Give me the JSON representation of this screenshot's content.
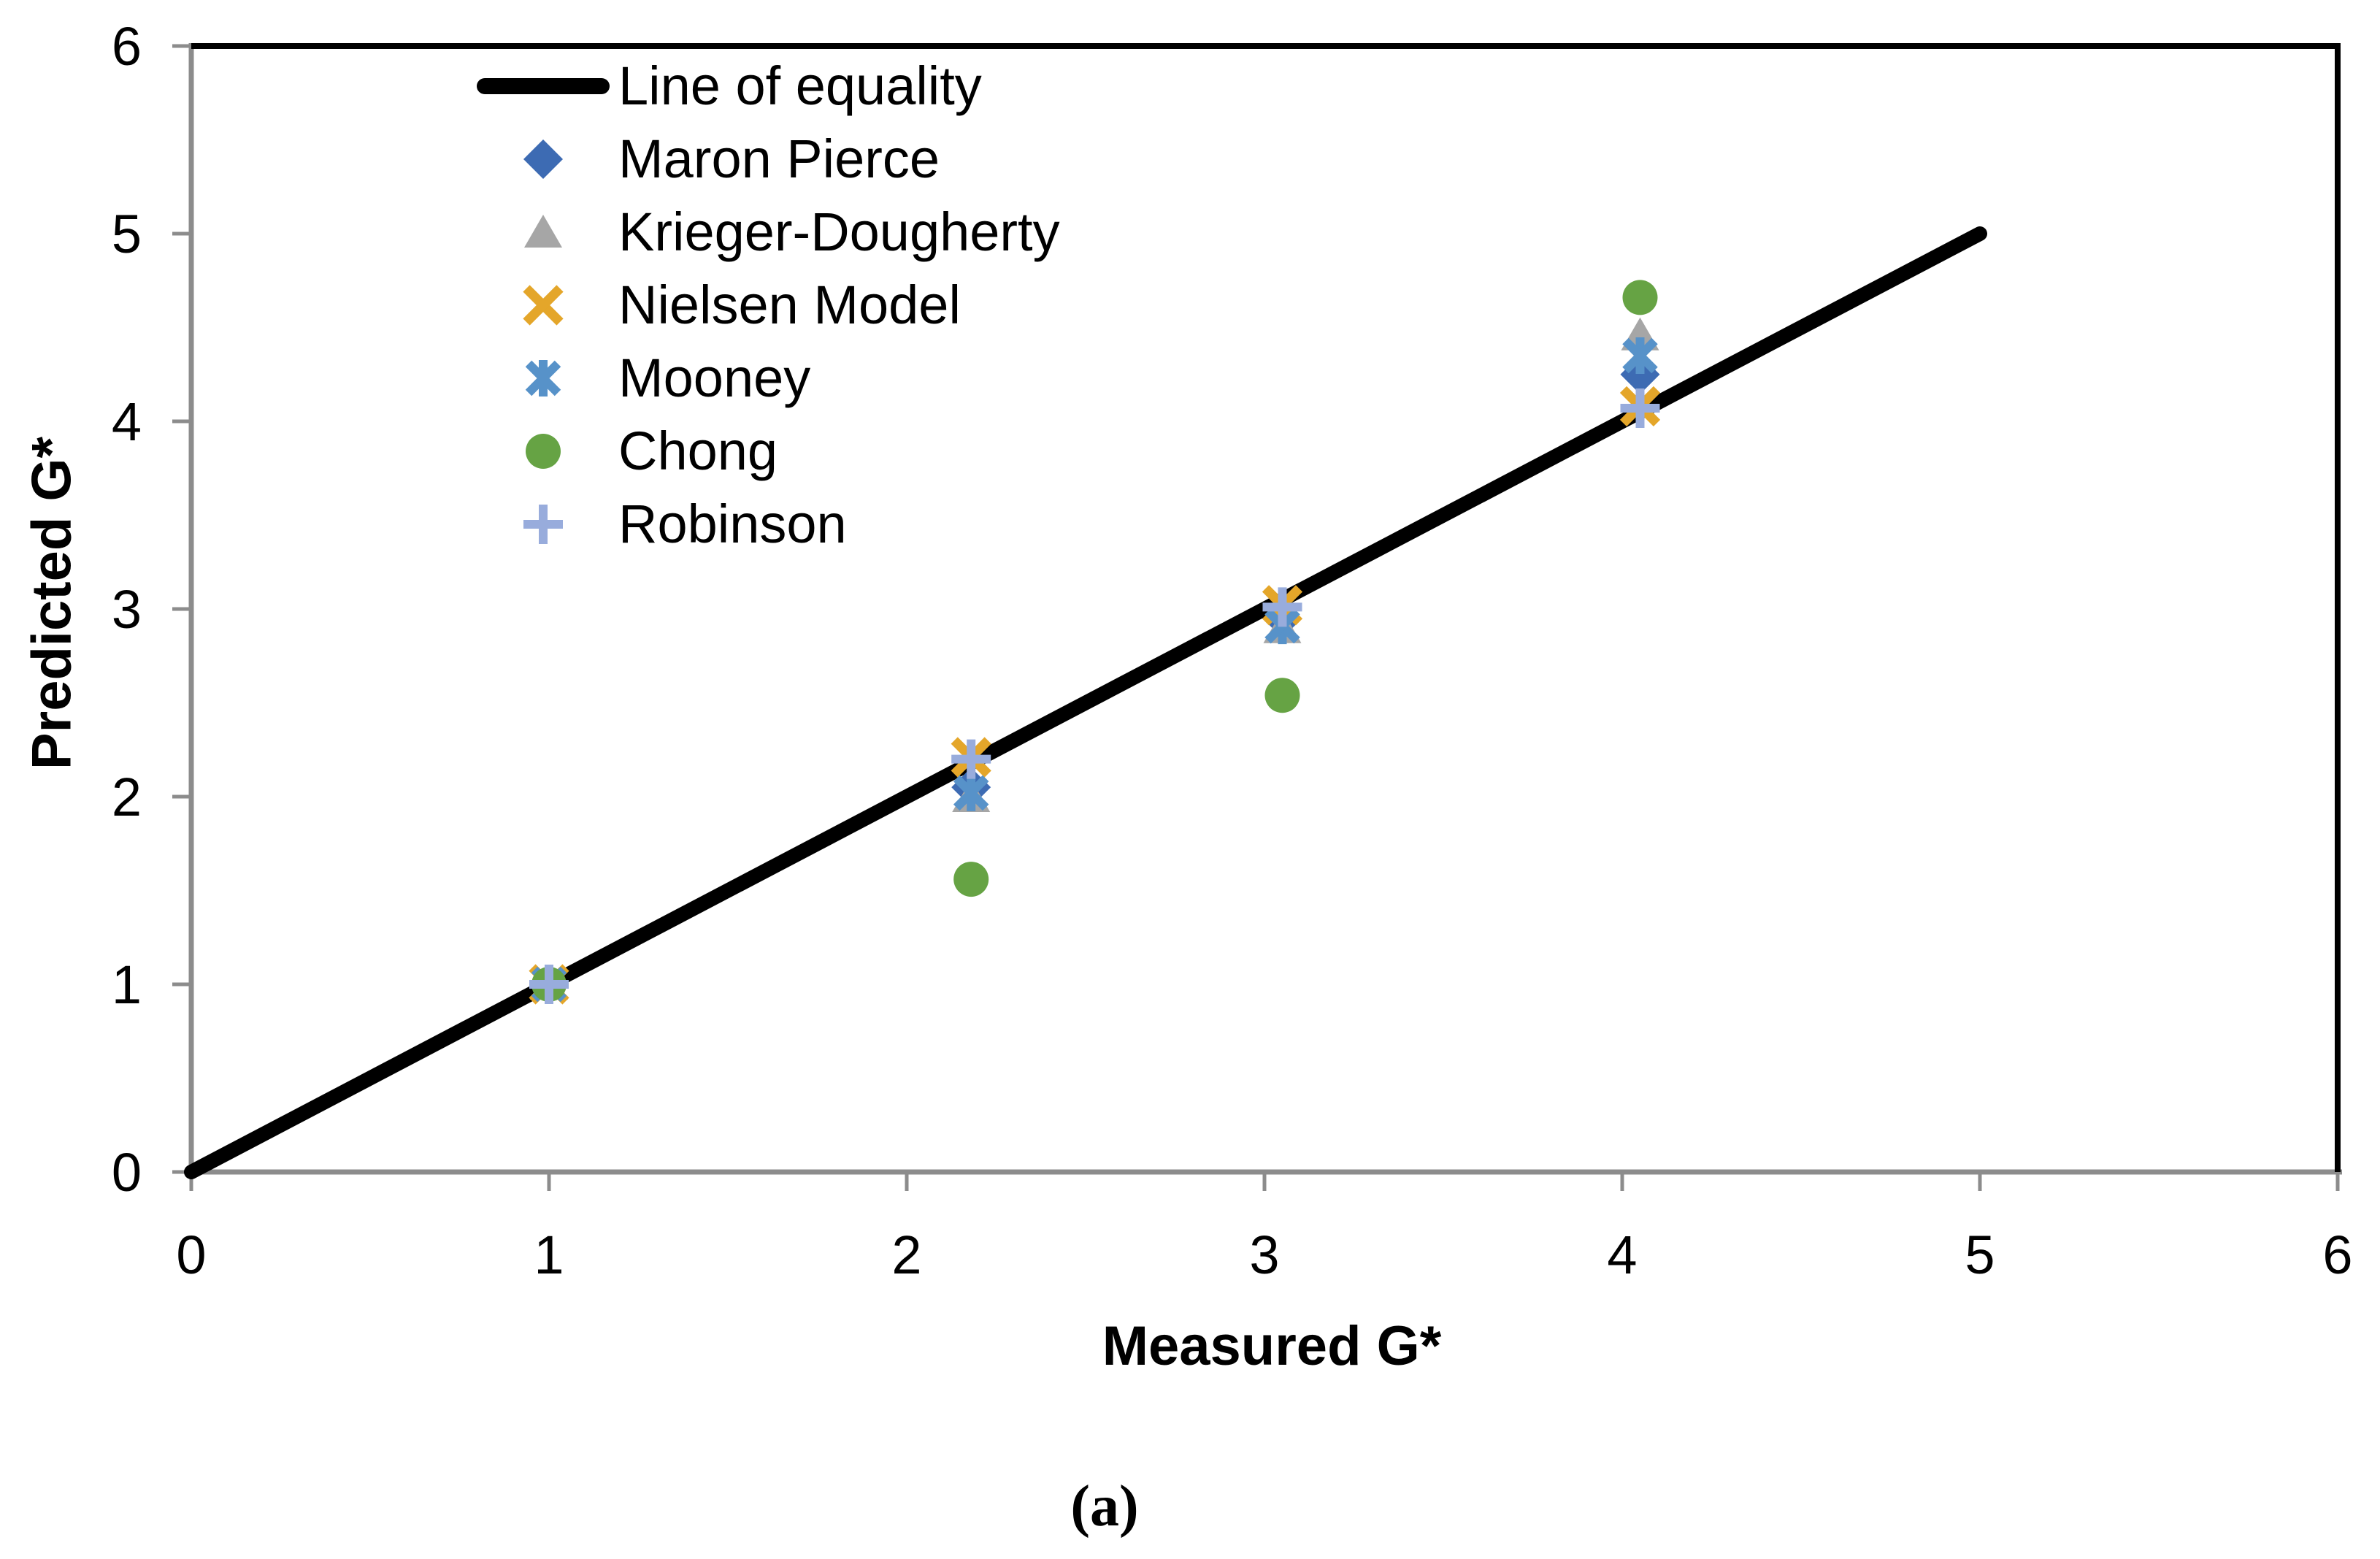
{
  "figure": {
    "caption": "(a)",
    "background": "#FFFFFF"
  },
  "chart_data": {
    "type": "scatter",
    "xlabel": "Measured G*",
    "ylabel": "Predicted G*",
    "xlim": [
      0,
      6
    ],
    "ylim": [
      0,
      6
    ],
    "x_ticks": [
      "0",
      "1",
      "2",
      "3",
      "4",
      "5",
      "6"
    ],
    "y_ticks": [
      "0",
      "1",
      "2",
      "3",
      "4",
      "5",
      "6"
    ],
    "grid": false,
    "legend_position": "inside-top-left",
    "axis_color": "#8C8C8C",
    "frame_color": "#000000",
    "text_color": "#000000",
    "equality_line": {
      "label": "Line of equality",
      "x": [
        0,
        5
      ],
      "y": [
        0,
        5
      ],
      "color": "#000000"
    },
    "x": [
      1.0,
      2.18,
      3.05,
      4.05
    ],
    "series": [
      {
        "name": "Maron Pierce",
        "marker": "diamond",
        "color": "#3D6BB3",
        "y": [
          1.0,
          2.05,
          2.95,
          4.25
        ]
      },
      {
        "name": "Krieger-Dougherty",
        "marker": "triangle",
        "color": "#A6A6A6",
        "y": [
          1.0,
          2.0,
          2.9,
          4.46
        ]
      },
      {
        "name": "Nielsen Model",
        "marker": "x",
        "color": "#E4A62A",
        "y": [
          1.0,
          2.21,
          3.02,
          4.08
        ]
      },
      {
        "name": "Mooney",
        "marker": "asterisk",
        "color": "#5792C9",
        "y": [
          1.0,
          2.02,
          2.91,
          4.35
        ]
      },
      {
        "name": "Chong",
        "marker": "circle",
        "color": "#66A344",
        "y": [
          1.0,
          1.56,
          2.54,
          4.66
        ]
      },
      {
        "name": "Robinson",
        "marker": "plus",
        "color": "#98ACDC",
        "y": [
          1.0,
          2.2,
          3.01,
          4.07
        ]
      }
    ]
  }
}
